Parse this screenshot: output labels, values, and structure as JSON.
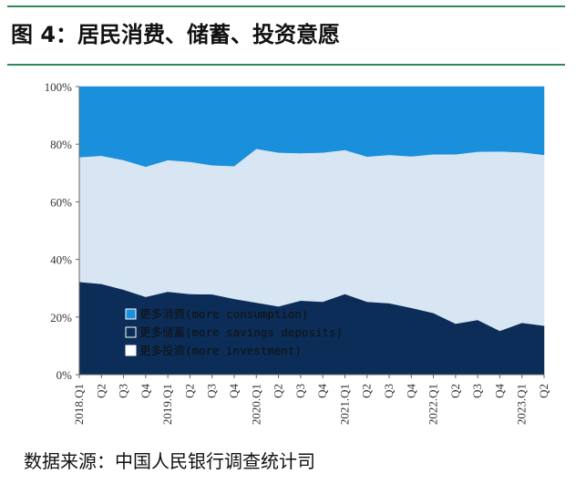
{
  "title": "图 4：居民消费、储蓄、投资意愿",
  "source": "数据来源：中国人民银行调查统计司",
  "chart_data": {
    "type": "area",
    "stacked": true,
    "categories": [
      "2018Q1",
      "Q2",
      "Q3",
      "Q4",
      "2019Q1",
      "Q2",
      "Q3",
      "Q4",
      "2020Q1",
      "Q2",
      "Q3",
      "Q4",
      "2021Q1",
      "Q2",
      "Q3",
      "Q4",
      "2022Q1",
      "Q2",
      "Q3",
      "Q4",
      "2023Q1",
      "Q2"
    ],
    "x_tick_labels": [
      "2018.Q1",
      "Q2",
      "Q3",
      "Q4",
      "2019.Q1",
      "Q2",
      "Q3",
      "Q4",
      "2020.Q1",
      "Q2",
      "Q3",
      "Q4",
      "2021.Q1",
      "Q2",
      "Q3",
      "Q4",
      "2022.Q1",
      "Q2",
      "Q3",
      "Q4",
      "2023.Q1",
      "Q2"
    ],
    "y_ticks": [
      0,
      20,
      40,
      60,
      80,
      100
    ],
    "y_tick_labels": [
      "0%",
      "20%",
      "40%",
      "60%",
      "80%",
      "100%"
    ],
    "ylim": [
      0,
      100
    ],
    "series": [
      {
        "name": "更多储蓄(more savings deposits)",
        "color": "#0b2d57",
        "values": [
          32.2,
          31.5,
          29.5,
          27.0,
          28.8,
          28.0,
          27.9,
          26.3,
          25.0,
          23.7,
          25.7,
          25.3,
          28.0,
          25.3,
          24.8,
          23.2,
          21.4,
          17.7,
          19.0,
          15.2,
          18.0,
          17.0
        ]
      },
      {
        "name": "更多投资(more investment)",
        "color": "#d8e6f4",
        "values": [
          43.3,
          44.5,
          45.0,
          45.2,
          45.7,
          45.9,
          44.8,
          46.1,
          53.4,
          53.4,
          51.2,
          51.8,
          50.0,
          50.4,
          51.5,
          52.6,
          55.1,
          58.8,
          58.4,
          62.3,
          59.2,
          59.3
        ]
      },
      {
        "name": "更多消费(more consumption)",
        "color": "#1a8fdc",
        "values": [
          24.5,
          24.0,
          25.5,
          27.8,
          25.5,
          26.1,
          27.3,
          27.6,
          21.6,
          22.9,
          23.1,
          22.9,
          22.0,
          24.3,
          23.7,
          24.2,
          23.5,
          23.5,
          22.6,
          22.5,
          22.8,
          23.7
        ]
      }
    ],
    "legend": {
      "position": "inside-bottom-left",
      "order": [
        {
          "label": "更多消费(more consumption)",
          "color": "#1a8fdc"
        },
        {
          "label": "更多储蓄(more savings deposits)",
          "color": "#0b2d57"
        },
        {
          "label": "更多投资(more investment)",
          "color": "#ffffff"
        }
      ]
    },
    "grid": false
  }
}
